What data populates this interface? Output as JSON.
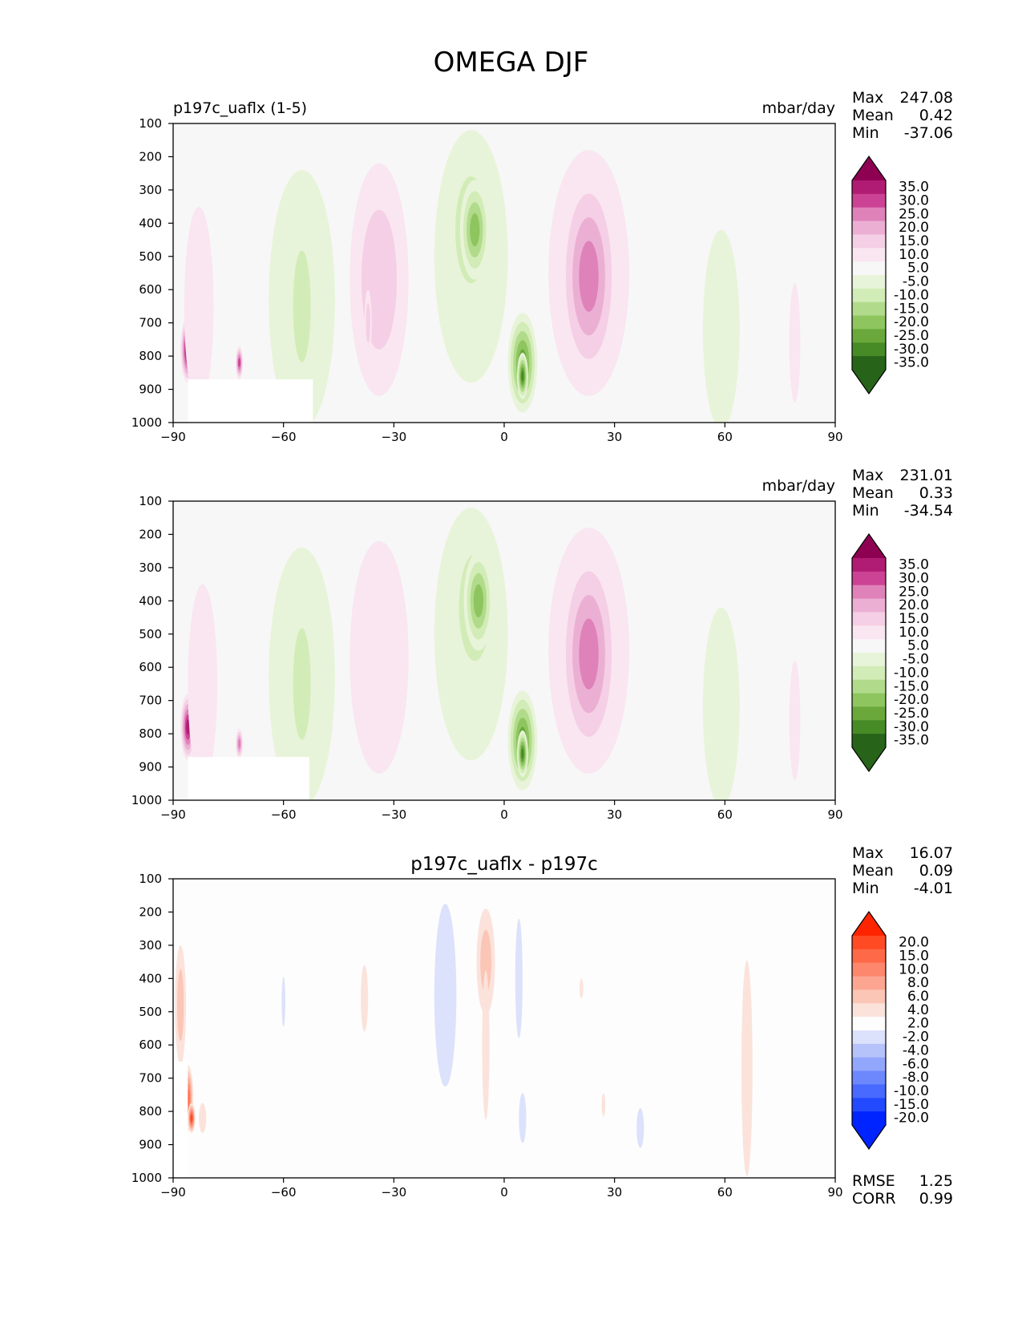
{
  "figure": {
    "title": "OMEGA DJF"
  },
  "chart_data": [
    {
      "type": "contour",
      "left_title": "p197c_uaflx (1-5)",
      "center_title": "",
      "units": "mbar/day",
      "stats": {
        "max_label": "Max",
        "max": "247.08",
        "mean_label": "Mean",
        "mean": "0.42",
        "min_label": "Min",
        "min": "-37.06"
      },
      "xlim": [
        -90,
        90
      ],
      "xticks": [
        "−90",
        "−60",
        "−30",
        "0",
        "30",
        "60",
        "90"
      ],
      "ylim": [
        1000,
        100
      ],
      "yticks": [
        "100",
        "200",
        "300",
        "400",
        "500",
        "600",
        "700",
        "800",
        "900",
        "1000"
      ],
      "colorbar": {
        "labels": [
          "35.0",
          "30.0",
          "25.0",
          "20.0",
          "15.0",
          "10.0",
          "5.0",
          "-5.0",
          "-10.0",
          "-15.0",
          "-20.0",
          "-25.0",
          "-30.0",
          "-35.0"
        ],
        "colors": [
          "#8e0152",
          "#b01c73",
          "#cc4294",
          "#df82ba",
          "#ecafd4",
          "#f5cfe5",
          "#f9e6f1",
          "#f7f7f7",
          "#e8f4d9",
          "#d2ecb7",
          "#b1db8b",
          "#8ec55f",
          "#6aa83b",
          "#478b27",
          "#276419"
        ]
      },
      "features": [
        {
          "lat": -86,
          "p": 780,
          "w": 4,
          "h": 200,
          "v": 35
        },
        {
          "lat": -83,
          "p": 650,
          "w": 8,
          "h": 600,
          "v": 8
        },
        {
          "lat": -72,
          "p": 820,
          "w": 2,
          "h": 100,
          "v": 25
        },
        {
          "lat": -55,
          "p": 630,
          "w": 18,
          "h": 780,
          "v": -7
        },
        {
          "lat": -55,
          "p": 650,
          "w": 8,
          "h": 560,
          "v": -12
        },
        {
          "lat": -34,
          "p": 570,
          "w": 16,
          "h": 700,
          "v": 10
        },
        {
          "lat": -37,
          "p": 700,
          "w": 2,
          "h": 200,
          "v": 14
        },
        {
          "lat": -9,
          "p": 500,
          "w": 20,
          "h": 760,
          "v": -9
        },
        {
          "lat": -9,
          "p": 420,
          "w": 12,
          "h": 450,
          "v": -18
        },
        {
          "lat": -8,
          "p": 420,
          "w": 8,
          "h": 300,
          "v": -24
        },
        {
          "lat": 5,
          "p": 820,
          "w": 8,
          "h": 300,
          "v": -28
        },
        {
          "lat": 5,
          "p": 860,
          "w": 3,
          "h": 140,
          "v": -34
        },
        {
          "lat": 23,
          "p": 550,
          "w": 22,
          "h": 740,
          "v": 14
        },
        {
          "lat": 23,
          "p": 560,
          "w": 16,
          "h": 640,
          "v": 23
        },
        {
          "lat": 59,
          "p": 720,
          "w": 10,
          "h": 600,
          "v": -7
        },
        {
          "lat": 79,
          "p": 760,
          "w": 3,
          "h": 360,
          "v": 6
        }
      ],
      "mask": {
        "lat_range": [
          -86,
          -52
        ],
        "p_range": [
          870,
          1000
        ]
      }
    },
    {
      "type": "contour",
      "left_title": "",
      "center_title": "",
      "units": "mbar/day",
      "stats": {
        "max_label": "Max",
        "max": "231.01",
        "mean_label": "Mean",
        "mean": "0.33",
        "min_label": "Min",
        "min": "-34.54"
      },
      "xlim": [
        -90,
        90
      ],
      "xticks": [
        "−90",
        "−60",
        "−30",
        "0",
        "30",
        "60",
        "90"
      ],
      "ylim": [
        1000,
        100
      ],
      "yticks": [
        "100",
        "200",
        "300",
        "400",
        "500",
        "600",
        "700",
        "800",
        "900",
        "1000"
      ],
      "colorbar": {
        "labels": [
          "35.0",
          "30.0",
          "25.0",
          "20.0",
          "15.0",
          "10.0",
          "5.0",
          "-5.0",
          "-10.0",
          "-15.0",
          "-20.0",
          "-25.0",
          "-30.0",
          "-35.0"
        ],
        "colors": [
          "#8e0152",
          "#b01c73",
          "#cc4294",
          "#df82ba",
          "#ecafd4",
          "#f5cfe5",
          "#f9e6f1",
          "#f7f7f7",
          "#e8f4d9",
          "#d2ecb7",
          "#b1db8b",
          "#8ec55f",
          "#6aa83b",
          "#478b27",
          "#276419"
        ]
      },
      "features": [
        {
          "lat": -86,
          "p": 780,
          "w": 4,
          "h": 200,
          "v": 33
        },
        {
          "lat": -82,
          "p": 650,
          "w": 8,
          "h": 600,
          "v": 7
        },
        {
          "lat": -72,
          "p": 830,
          "w": 2,
          "h": 90,
          "v": 22
        },
        {
          "lat": -55,
          "p": 630,
          "w": 18,
          "h": 780,
          "v": -6
        },
        {
          "lat": -55,
          "p": 650,
          "w": 8,
          "h": 560,
          "v": -11
        },
        {
          "lat": -34,
          "p": 570,
          "w": 16,
          "h": 700,
          "v": 9
        },
        {
          "lat": -9,
          "p": 500,
          "w": 20,
          "h": 760,
          "v": -8
        },
        {
          "lat": -8,
          "p": 420,
          "w": 12,
          "h": 450,
          "v": -17
        },
        {
          "lat": -7,
          "p": 400,
          "w": 8,
          "h": 300,
          "v": -23
        },
        {
          "lat": 5,
          "p": 820,
          "w": 8,
          "h": 300,
          "v": -27
        },
        {
          "lat": 5,
          "p": 860,
          "w": 3,
          "h": 140,
          "v": -33
        },
        {
          "lat": 23,
          "p": 550,
          "w": 22,
          "h": 740,
          "v": 13
        },
        {
          "lat": 23,
          "p": 560,
          "w": 16,
          "h": 640,
          "v": 22
        },
        {
          "lat": 59,
          "p": 720,
          "w": 10,
          "h": 600,
          "v": -6
        },
        {
          "lat": 79,
          "p": 760,
          "w": 3,
          "h": 360,
          "v": 5
        }
      ],
      "mask": {
        "lat_range": [
          -86,
          -53
        ],
        "p_range": [
          870,
          1000
        ]
      }
    },
    {
      "type": "contour",
      "left_title": "",
      "center_title": "p197c_uaflx - p197c",
      "units": "",
      "stats": {
        "max_label": "Max",
        "max": "16.07",
        "mean_label": "Mean",
        "mean": "0.09",
        "min_label": "Min",
        "min": "-4.01"
      },
      "metrics": {
        "rmse_label": "RMSE",
        "rmse": "1.25",
        "corr_label": "CORR",
        "corr": "0.99"
      },
      "xlim": [
        -90,
        90
      ],
      "xticks": [
        "−90",
        "−60",
        "−30",
        "0",
        "30",
        "60",
        "90"
      ],
      "ylim": [
        1000,
        100
      ],
      "yticks": [
        "100",
        "200",
        "300",
        "400",
        "500",
        "600",
        "700",
        "800",
        "900",
        "1000"
      ],
      "colorbar": {
        "labels": [
          "20.0",
          "15.0",
          "10.0",
          "8.0",
          "6.0",
          "4.0",
          "2.0",
          "-2.0",
          "-4.0",
          "-6.0",
          "-8.0",
          "-10.0",
          "-15.0",
          "-20.0"
        ],
        "colors": [
          "#ff2400",
          "#ff4a24",
          "#fe6a48",
          "#fd876d",
          "#fca692",
          "#fbc6b6",
          "#fbe3dc",
          "#fdfdfd",
          "#dce2fb",
          "#b6c3fb",
          "#92a6fc",
          "#6d87fd",
          "#486afe",
          "#244aff",
          "#0024ff"
        ]
      },
      "features": [
        {
          "lat": -88,
          "p": 480,
          "w": 3,
          "h": 360,
          "v": 5
        },
        {
          "lat": -86,
          "p": 760,
          "w": 3,
          "h": 200,
          "v": 10
        },
        {
          "lat": -85,
          "p": 820,
          "w": 2,
          "h": 90,
          "v": 15
        },
        {
          "lat": -82,
          "p": 820,
          "w": 2,
          "h": 90,
          "v": 3
        },
        {
          "lat": -60,
          "p": 470,
          "w": 1,
          "h": 150,
          "v": -3
        },
        {
          "lat": -38,
          "p": 460,
          "w": 2,
          "h": 200,
          "v": 3
        },
        {
          "lat": -16,
          "p": 450,
          "w": 6,
          "h": 550,
          "v": -3
        },
        {
          "lat": -5,
          "p": 350,
          "w": 5,
          "h": 320,
          "v": 4
        },
        {
          "lat": -5,
          "p": 600,
          "w": 2,
          "h": 450,
          "v": 3
        },
        {
          "lat": 4,
          "p": 400,
          "w": 2,
          "h": 360,
          "v": -3
        },
        {
          "lat": 5,
          "p": 820,
          "w": 2,
          "h": 150,
          "v": -3
        },
        {
          "lat": 21,
          "p": 430,
          "w": 1,
          "h": 60,
          "v": 3
        },
        {
          "lat": 27,
          "p": 780,
          "w": 1,
          "h": 70,
          "v": 3
        },
        {
          "lat": 37,
          "p": 850,
          "w": 2,
          "h": 120,
          "v": -3
        },
        {
          "lat": 66,
          "p": 670,
          "w": 3,
          "h": 650,
          "v": 3
        }
      ],
      "mask": {
        "lat_range": [
          -90,
          -86
        ],
        "p_range": [
          650,
          1000
        ]
      }
    }
  ]
}
